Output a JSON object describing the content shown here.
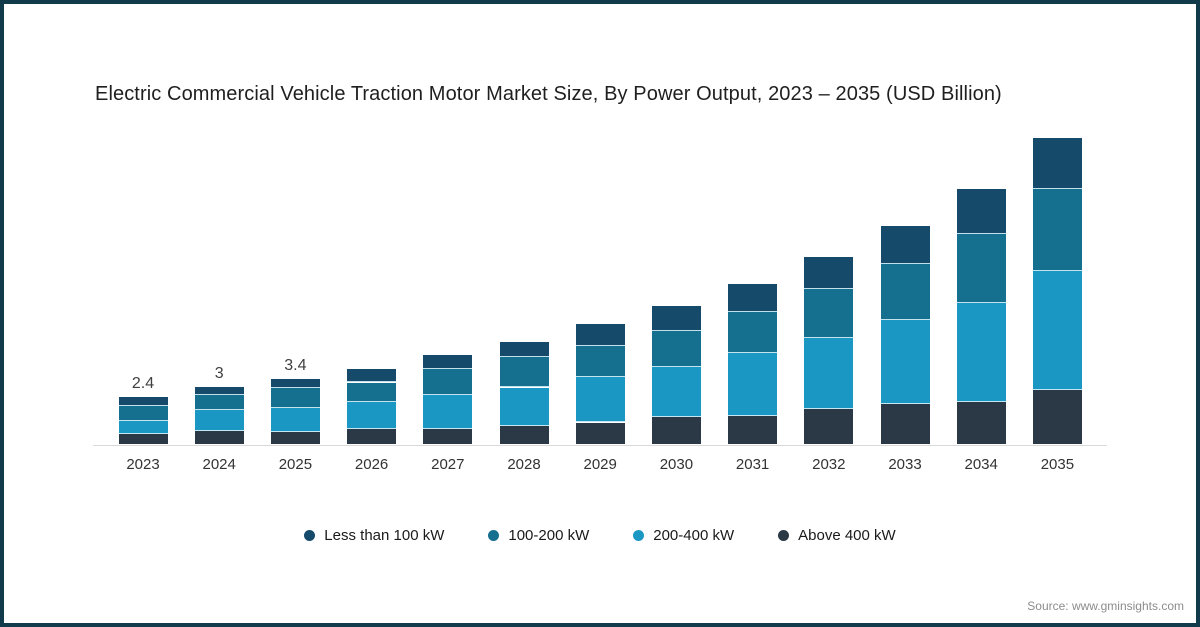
{
  "header": {
    "title": "Electric Commercial Vehicle Traction Motor Market Size, By Power Output, 2023 – 2035 (USD Billion)"
  },
  "footer": {
    "source": "Source: www.gminsights.com"
  },
  "colors": {
    "frame_border": "#113b4a",
    "axis_line": "#d9d9d9",
    "less_than_100_kw": "#164a6b",
    "kw_100_200": "#156f8e",
    "kw_200_400": "#1b97c4",
    "above_400_kw": "#2b3845"
  },
  "legend": {
    "items": [
      {
        "label": "Less than 100 kW",
        "color": "#164a6b"
      },
      {
        "label": "100-200 kW",
        "color": "#156f8e"
      },
      {
        "label": "200-400 kW",
        "color": "#1b97c4"
      },
      {
        "label": "Above 400 kW",
        "color": "#2b3845"
      }
    ]
  },
  "chart_data": {
    "type": "bar",
    "subtype": "stacked-vertical",
    "title": "Electric Commercial Vehicle Traction Motor Market Size, By Power Output, 2023 – 2035 (USD Billion)",
    "unit": "USD Billion",
    "xlabel": "",
    "ylabel": "",
    "y_axis_visible": false,
    "grid": false,
    "legend_position": "bottom-center",
    "ylim": [
      0,
      16
    ],
    "categories": [
      "2023",
      "2024",
      "2025",
      "2026",
      "2027",
      "2028",
      "2029",
      "2030",
      "2031",
      "2032",
      "2033",
      "2034",
      "2035"
    ],
    "stack_order_bottom_to_top": [
      "Above 400 kW",
      "200-400 kW",
      "100-200 kW",
      "Less than 100 kW"
    ],
    "series": [
      {
        "name": "Less than 100 kW",
        "color": "#164a6b",
        "values": [
          0.45,
          0.4,
          0.5,
          0.7,
          0.7,
          0.8,
          1.1,
          1.3,
          1.45,
          1.65,
          1.95,
          2.35,
          2.6
        ]
      },
      {
        "name": "100-200 kW",
        "color": "#156f8e",
        "values": [
          0.75,
          0.75,
          1.0,
          1.0,
          1.35,
          1.55,
          1.6,
          1.85,
          2.1,
          2.5,
          2.9,
          3.5,
          4.25
        ]
      },
      {
        "name": "200-400 kW",
        "color": "#1b97c4",
        "values": [
          0.7,
          1.1,
          1.25,
          1.4,
          1.75,
          1.95,
          2.35,
          2.55,
          3.2,
          3.65,
          4.3,
          5.1,
          6.1
        ]
      },
      {
        "name": "Above 400 kW",
        "color": "#2b3845",
        "values": [
          0.5,
          0.65,
          0.6,
          0.75,
          0.75,
          0.95,
          1.1,
          1.4,
          1.45,
          1.8,
          2.05,
          2.15,
          2.75
        ]
      }
    ],
    "totals": [
      2.4,
      2.9,
      3.35,
      3.85,
      4.55,
      5.25,
      6.15,
      7.1,
      8.2,
      9.6,
      11.2,
      13.1,
      15.7
    ],
    "value_labels": {
      "2023": "2.4",
      "2024": "3",
      "2025": "3.4"
    }
  }
}
